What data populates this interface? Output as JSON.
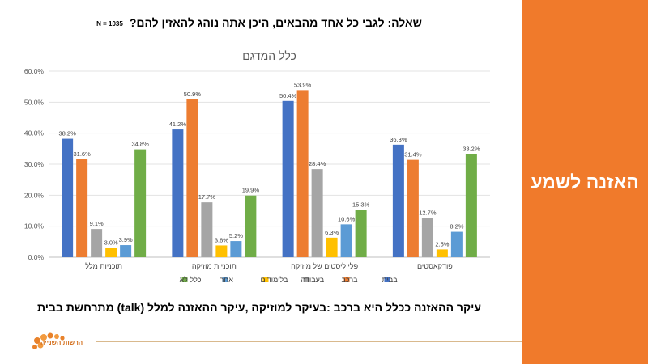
{
  "header": {
    "question": "שאלה: לגבי כל אחד מהבאים, היכן אתה נוהג להאזין להם?",
    "n_label": "N = 1035"
  },
  "side_panel": {
    "title": "האזנה לשמע",
    "background": "#f07a2b"
  },
  "footer": {
    "note": "עיקר ההאזנה ככלל היא ברכב :בעיקר למוזיקה ,עיקר ההאזנה למלל (talk) מתרחשת בבית",
    "logo_text": "הרשות השנייה"
  },
  "chart_data": {
    "type": "bar",
    "title": "כלל המדגם",
    "categories": [
      "תוכניות מלל",
      "תוכניות מוזיקה",
      "פלייליסטים של מוזיקה",
      "פודקאסטים"
    ],
    "ylim": [
      0,
      60
    ],
    "yticks": [
      "0.0%",
      "10.0%",
      "20.0%",
      "30.0%",
      "40.0%",
      "50.0%",
      "60.0%"
    ],
    "grid": true,
    "legend_position": "bottom",
    "series": [
      {
        "name": "בבית",
        "color": "#4472c4",
        "values": [
          38.2,
          41.2,
          50.4,
          36.3
        ],
        "labels": [
          "38.2%",
          "41.2%",
          "50.4%",
          "36.3%"
        ]
      },
      {
        "name": "ברכב",
        "color": "#ed7d31",
        "values": [
          31.6,
          50.9,
          53.9,
          31.4
        ],
        "labels": [
          "31.6%",
          "50.9%",
          "53.9%",
          "31.4%"
        ]
      },
      {
        "name": "בעבודה",
        "color": "#a5a5a5",
        "values": [
          9.1,
          17.7,
          28.4,
          12.7
        ],
        "labels": [
          "9.1%",
          "17.7%",
          "28.4%",
          "12.7%"
        ]
      },
      {
        "name": "בלימודים",
        "color": "#ffc000",
        "values": [
          3.0,
          3.8,
          6.3,
          2.5
        ],
        "labels": [
          "3.0%",
          "3.8%",
          "6.3%",
          "2.5%"
        ]
      },
      {
        "name": "אחר",
        "color": "#5b9bd5",
        "values": [
          3.9,
          5.2,
          10.6,
          8.2
        ],
        "labels": [
          "3.9%",
          "5.2%",
          "10.6%",
          "8.2%"
        ]
      },
      {
        "name": "כלל לא",
        "color": "#70ad47",
        "values": [
          34.8,
          19.9,
          15.3,
          33.2
        ],
        "labels": [
          "34.8%",
          "19.9%",
          "15.3%",
          "33.2%"
        ]
      }
    ]
  }
}
